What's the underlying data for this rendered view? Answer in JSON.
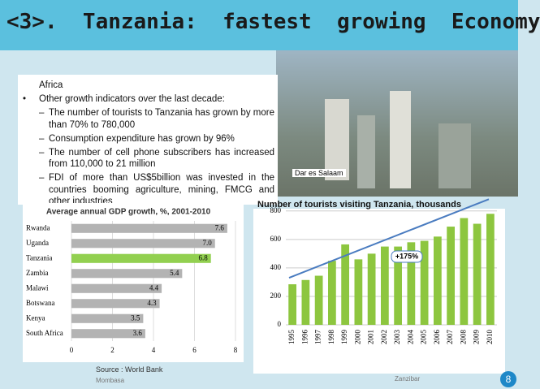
{
  "header": {
    "title": "<3>.  Tanzania:  fastest  growing  Economy"
  },
  "body": {
    "fragment": "Africa",
    "bullet": "Other growth indicators over the last decade:",
    "sub_bullets": [
      "The number of tourists to Tanzania has grown by more than 70% to 780,000",
      "Consumption expenditure has grown by 96%",
      "The number of cell phone subscribers has increased from 110,000 to 21 million",
      "FDI of more than US$5billion was invested in the countries booming agriculture, mining, FMCG and other industries"
    ]
  },
  "photo_caption": "Dar es Salaam",
  "map_labels": [
    "Mombasa",
    "Zanzibar"
  ],
  "source": "Source : World Bank",
  "page_number": "8",
  "chart_data": [
    {
      "type": "hbar",
      "title": "Average annual GDP growth, %, 2001-2010",
      "categories": [
        "Rwanda",
        "Uganda",
        "Tanzania",
        "Zambia",
        "Malawi",
        "Botswana",
        "Kenya",
        "South Africa"
      ],
      "values": [
        7.6,
        7.0,
        6.8,
        5.4,
        4.4,
        4.3,
        3.5,
        3.6
      ],
      "value_labels": [
        "7.6",
        "7.0",
        "6.8",
        "5.4",
        "4.4",
        "4.3",
        "3.5",
        "3.6"
      ],
      "colors": [
        "#b3b3b3",
        "#b3b3b3",
        "#92d050",
        "#b3b3b3",
        "#b3b3b3",
        "#b3b3b3",
        "#b3b3b3",
        "#b3b3b3"
      ],
      "xlim": [
        0,
        8
      ],
      "xticks": [
        0,
        2,
        4,
        6,
        8
      ],
      "grid": true
    },
    {
      "type": "bar",
      "title": "Number of tourists visiting Tanzania, thousands",
      "categories": [
        "1995",
        "1996",
        "1997",
        "1998",
        "1999",
        "2000",
        "2001",
        "2002",
        "2003",
        "2004",
        "2005",
        "2006",
        "2007",
        "2008",
        "2009",
        "2010"
      ],
      "values": [
        285,
        315,
        345,
        450,
        565,
        460,
        500,
        550,
        550,
        580,
        590,
        620,
        690,
        750,
        710,
        780
      ],
      "color": "#8dc63f",
      "ylim": [
        0,
        850
      ],
      "yticks": [
        0,
        200,
        400,
        600,
        800
      ],
      "grid": true,
      "annotation": "+175%"
    }
  ]
}
